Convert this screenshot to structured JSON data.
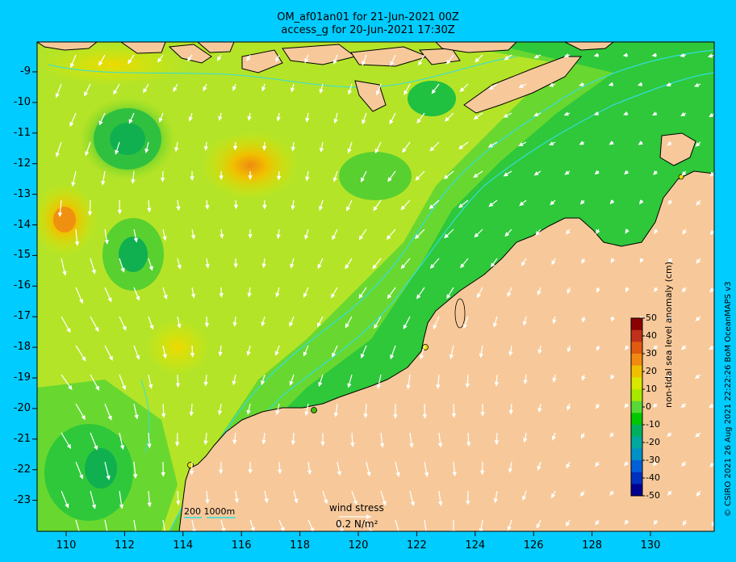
{
  "title": {
    "line1": "OM_af01an01 for 21-Jun-2021 00Z",
    "line2": "access_g for 20-Jun-2021 17:30Z"
  },
  "axes": {
    "x_ticks": [
      "110",
      "112",
      "114",
      "116",
      "118",
      "120",
      "122",
      "124",
      "126",
      "128",
      "130"
    ],
    "y_ticks": [
      "-9",
      "-10",
      "-11",
      "-12",
      "-13",
      "-14",
      "-15",
      "-16",
      "-17",
      "-18",
      "-19",
      "-20",
      "-21",
      "-22",
      "-23"
    ]
  },
  "colorbar": {
    "title": "non-tidal sea level anomaly (cm)",
    "ticks": [
      "50",
      "40",
      "30",
      "20",
      "10",
      "0",
      "-10",
      "-20",
      "-30",
      "-40",
      "-50"
    ],
    "colors": [
      "#8b0000",
      "#c0301a",
      "#e05a10",
      "#f08a10",
      "#f0c000",
      "#d8e800",
      "#a8e800",
      "#58d838",
      "#00c800",
      "#00b060",
      "#00a8a0",
      "#0090c8",
      "#0060d8",
      "#0030c0",
      "#000090"
    ]
  },
  "legend": {
    "wind_stress_label": "wind stress",
    "wind_stress_value": "0.2 N/m²",
    "depth_contours": "200  1000m"
  },
  "copyright": "© CSIRO 2021  26 Aug 2021 22:22:26 BoM OceanMAPS v3",
  "colors": {
    "background": "#00ccff",
    "land": "#f7c99a",
    "contour": "#33dddd"
  }
}
